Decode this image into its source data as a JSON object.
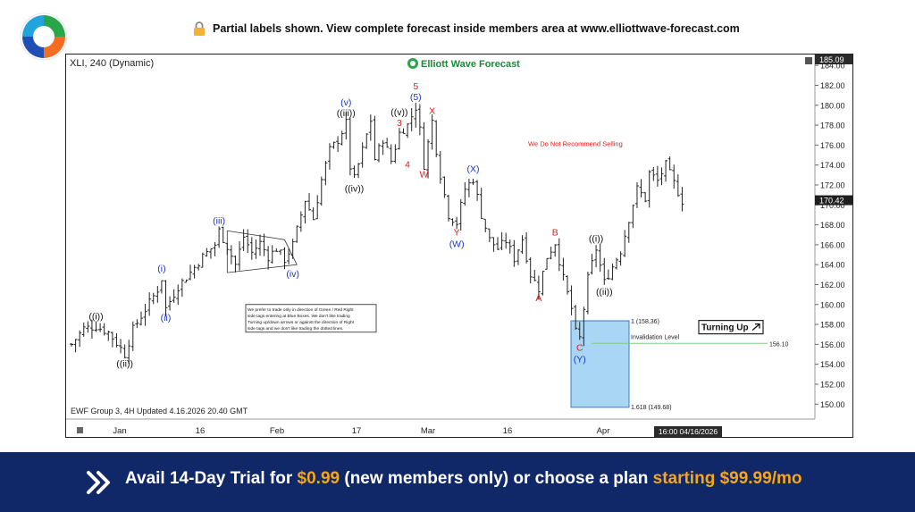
{
  "header": {
    "notice": "Partial labels shown. View complete forecast inside members area at www.elliottwave-forecast.com",
    "lock_icon": "lock-icon"
  },
  "chart": {
    "symbol": "XLI, 240 (Dynamic)",
    "brand": "Elliott Wave Forecast",
    "footer": "EWF Group 3, 4H Updated 4.16.2026 20.40 GMT",
    "warning": "We Do Not Recommend Selling",
    "guide": [
      "We prefer to trade only in direction of Green / Red Right",
      "side tags entering at Blue Boxes. We don't like trading",
      "Turning up/down arrows or against the direction of Right",
      "side tags and we don't like trading the dotted lines."
    ],
    "turning_label": "Turning Up",
    "invalidation_label": "Invalidation Level",
    "invalidation_value": "156.10",
    "fib_1": "1 (158.36)",
    "fib_1618": "1.618 (149.68)",
    "last_price": "170.42",
    "top_price": "185.09",
    "cursor_date": "16:00 04/16/2026"
  },
  "chart_data": {
    "type": "ohlc",
    "symbol": "XLI",
    "ylim": [
      148.5,
      185.09
    ],
    "y_ticks": [
      150,
      152,
      154,
      156,
      158,
      160,
      162,
      164,
      166,
      168,
      170,
      172,
      174,
      176,
      178,
      180,
      182,
      184
    ],
    "x_labels": [
      "Jan",
      "16",
      "Feb",
      "17",
      "Mar",
      "16",
      "Apr"
    ],
    "path": [
      [
        0,
        156.0
      ],
      [
        3,
        157.6
      ],
      [
        6,
        157.8
      ],
      [
        9,
        157.2
      ],
      [
        12,
        155.6
      ],
      [
        13,
        155.0
      ],
      [
        15,
        157.5
      ],
      [
        18,
        159.5
      ],
      [
        21,
        161.5
      ],
      [
        22,
        162.6
      ],
      [
        23,
        159.6
      ],
      [
        26,
        161.8
      ],
      [
        29,
        163.2
      ],
      [
        32,
        164.8
      ],
      [
        35,
        166.0
      ],
      [
        36,
        167.4
      ],
      [
        38,
        165.8
      ],
      [
        40,
        164.0
      ],
      [
        42,
        166.8
      ],
      [
        44,
        165.2
      ],
      [
        46,
        166.2
      ],
      [
        48,
        164.8
      ],
      [
        50,
        165.6
      ],
      [
        52,
        164.5
      ],
      [
        54,
        166.0
      ],
      [
        55,
        167.5
      ],
      [
        57,
        170.5
      ],
      [
        59,
        168.6
      ],
      [
        61,
        172.5
      ],
      [
        63,
        175.5
      ],
      [
        65,
        176.5
      ],
      [
        67,
        178.2
      ],
      [
        68,
        173.8
      ],
      [
        69,
        172.6
      ],
      [
        71,
        175.5
      ],
      [
        73,
        178.5
      ],
      [
        74,
        174.6
      ],
      [
        76,
        176.6
      ],
      [
        78,
        174.4
      ],
      [
        80,
        177.2
      ],
      [
        82,
        178.0
      ],
      [
        84,
        179.8
      ],
      [
        85,
        177.5
      ],
      [
        86,
        174.0
      ],
      [
        88,
        178.4
      ],
      [
        89,
        175.5
      ],
      [
        90,
        173.0
      ],
      [
        92,
        169.0
      ],
      [
        94,
        168.2
      ],
      [
        96,
        171.6
      ],
      [
        98,
        172.6
      ],
      [
        100,
        169.0
      ],
      [
        102,
        166.5
      ],
      [
        104,
        165.6
      ],
      [
        106,
        166.4
      ],
      [
        108,
        164.6
      ],
      [
        110,
        166.6
      ],
      [
        112,
        163.0
      ],
      [
        114,
        161.6
      ],
      [
        116,
        164.8
      ],
      [
        118,
        166.2
      ],
      [
        120,
        162.6
      ],
      [
        122,
        159.6
      ],
      [
        123,
        157.2
      ],
      [
        124,
        156.6
      ],
      [
        126,
        162.6
      ],
      [
        128,
        165.6
      ],
      [
        130,
        162.2
      ],
      [
        132,
        163.8
      ],
      [
        134,
        165.4
      ],
      [
        136,
        168.6
      ],
      [
        138,
        171.6
      ],
      [
        140,
        170.6
      ],
      [
        141,
        173.2
      ],
      [
        143,
        172.4
      ],
      [
        145,
        174.0
      ],
      [
        147,
        172.2
      ],
      [
        149,
        170.4
      ]
    ],
    "waves": [
      {
        "label": "((i))",
        "date_index": 6,
        "price": 157.8,
        "color": "black"
      },
      {
        "label": "((ii))",
        "date_index": 13,
        "price": 155.0,
        "color": "black"
      },
      {
        "label": "(i)",
        "date_index": 22,
        "price": 162.6,
        "color": "blue"
      },
      {
        "label": "(ii)",
        "date_index": 23,
        "price": 159.6,
        "color": "blue"
      },
      {
        "label": "(iii)",
        "date_index": 36,
        "price": 167.4,
        "color": "blue"
      },
      {
        "label": "(iv)",
        "date_index": 54,
        "price": 164.0,
        "color": "blue"
      },
      {
        "label": "((iii))",
        "date_index": 67,
        "price": 178.2,
        "color": "black"
      },
      {
        "label": "(v)",
        "date_index": 67,
        "price": 178.2,
        "color": "blue"
      },
      {
        "label": "((iv))",
        "date_index": 69,
        "price": 172.6,
        "color": "black"
      },
      {
        "label": "3",
        "date_index": 80,
        "price": 177.2,
        "color": "red"
      },
      {
        "label": "((v))",
        "date_index": 80,
        "price": 177.2,
        "color": "black"
      },
      {
        "label": "4",
        "date_index": 82,
        "price": 175.0,
        "color": "red"
      },
      {
        "label": "(5)",
        "date_index": 84,
        "price": 179.8,
        "color": "blue"
      },
      {
        "label": "5",
        "date_index": 84,
        "price": 179.8,
        "color": "red"
      },
      {
        "label": "X",
        "date_index": 88,
        "price": 178.4,
        "color": "red"
      },
      {
        "label": "W",
        "date_index": 86,
        "price": 174.0,
        "color": "red"
      },
      {
        "label": "(X)",
        "date_index": 98,
        "price": 172.6,
        "color": "blue"
      },
      {
        "label": "Y",
        "date_index": 94,
        "price": 168.2,
        "color": "red"
      },
      {
        "label": "(W)",
        "date_index": 94,
        "price": 168.2,
        "color": "blue"
      },
      {
        "label": "A",
        "date_index": 114,
        "price": 161.6,
        "color": "red"
      },
      {
        "label": "B",
        "date_index": 118,
        "price": 166.2,
        "color": "red"
      },
      {
        "label": "C",
        "date_index": 124,
        "price": 156.6,
        "color": "red"
      },
      {
        "label": "(Y)",
        "date_index": 124,
        "price": 156.6,
        "color": "blue"
      },
      {
        "label": "((i))",
        "date_index": 128,
        "price": 165.6,
        "color": "black"
      },
      {
        "label": "((ii))",
        "date_index": 130,
        "price": 162.2,
        "color": "black"
      }
    ],
    "blue_box": {
      "high": 158.36,
      "low": 149.68
    },
    "invalidation": 156.1,
    "last_price": 170.42
  },
  "promo": {
    "text_a": "Avail 14-Day Trial for ",
    "price_a": "$0.99",
    "text_b": " (new members only) or choose a plan ",
    "price_b": "starting $99.99/mo",
    "icon": "double-chevron-icon"
  },
  "colors": {
    "banner_bg": "#102867",
    "accent": "#f6a51c",
    "wave_blue": "#1a35c9",
    "wave_red": "#e01b1b",
    "box_fill": "#a9d6f5"
  }
}
